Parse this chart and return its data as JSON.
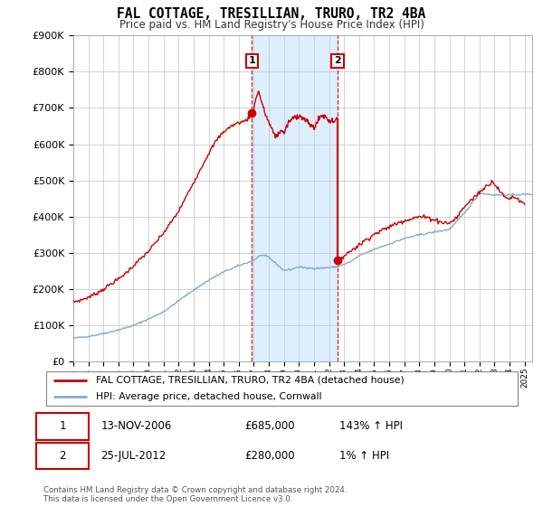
{
  "title": "FAL COTTAGE, TRESILLIAN, TRURO, TR2 4BA",
  "subtitle": "Price paid vs. HM Land Registry's House Price Index (HPI)",
  "legend_line1": "FAL COTTAGE, TRESILLIAN, TRURO, TR2 4BA (detached house)",
  "legend_line2": "HPI: Average price, detached house, Cornwall",
  "transaction1_date": "13-NOV-2006",
  "transaction1_price": "£685,000",
  "transaction1_hpi": "143% ↑ HPI",
  "transaction2_date": "25-JUL-2012",
  "transaction2_price": "£280,000",
  "transaction2_hpi": "1% ↑ HPI",
  "footer": "Contains HM Land Registry data © Crown copyright and database right 2024.\nThis data is licensed under the Open Government Licence v3.0.",
  "red_color": "#cc0000",
  "blue_color": "#88aacc",
  "shade_color": "#ddeeff",
  "transaction1_x": 2006.87,
  "transaction2_x": 2012.56,
  "ylim_max": 900000,
  "ylim_min": 0,
  "xlim_min": 1995.0,
  "xlim_max": 2025.5
}
